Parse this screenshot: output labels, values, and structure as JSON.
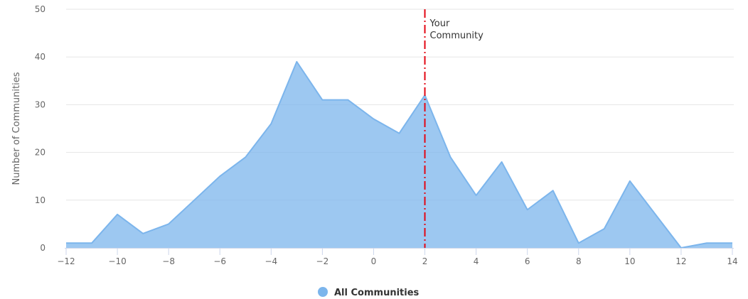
{
  "chart_data": {
    "type": "area",
    "title": "",
    "xlabel": "",
    "ylabel": "Number of Communities",
    "xlim": [
      -12,
      14
    ],
    "ylim": [
      0,
      50
    ],
    "x_ticks": [
      -12,
      -10,
      -8,
      -6,
      -4,
      -2,
      0,
      2,
      4,
      6,
      8,
      10,
      12,
      14
    ],
    "y_ticks": [
      0,
      10,
      20,
      30,
      40,
      50
    ],
    "grid": "horizontal",
    "legend_position": "bottom-center",
    "series": [
      {
        "name": "All Communities",
        "color": "#7cb5ec",
        "x": [
          -12,
          -11,
          -10,
          -9,
          -8,
          -7,
          -6,
          -5,
          -4,
          -3,
          -2,
          -1,
          0,
          1,
          2,
          3,
          4,
          5,
          6,
          7,
          8,
          9,
          10,
          11,
          12,
          13,
          14
        ],
        "values": [
          1,
          1,
          7,
          3,
          5,
          10,
          15,
          19,
          26,
          39,
          31,
          31,
          27,
          24,
          32,
          19,
          11,
          18,
          8,
          12,
          1,
          4,
          14,
          7,
          0,
          1,
          1
        ]
      }
    ],
    "annotations": [
      {
        "type": "vertical-line",
        "x": 2,
        "label_lines": [
          "Your",
          "Community"
        ],
        "color": "#e30613"
      }
    ]
  }
}
